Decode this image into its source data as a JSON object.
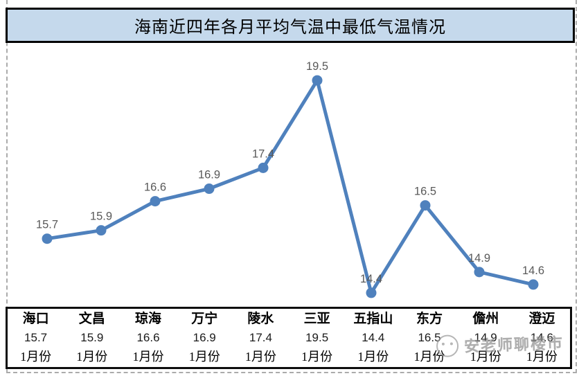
{
  "title": "海南近四年各月平均气温中最低气温情况",
  "watermark": {
    "text": "安老师聊楼市",
    "icon": "smiley-face-icon"
  },
  "colors": {
    "title_fill": "#c5d9ec",
    "title_border": "#000000",
    "line": "#4f81bd",
    "marker": "#4f81bd",
    "data_label": "#595959",
    "table_border": "#0d0d0d",
    "dashed_border": "#ababab",
    "watermark": "#8f8f8f"
  },
  "chart_data": {
    "type": "line",
    "title": "海南近四年各月平均气温中最低气温情况",
    "categories": [
      "海口",
      "文昌",
      "琼海",
      "万宁",
      "陵水",
      "三亚",
      "五指山",
      "东方",
      "儋州",
      "澄迈"
    ],
    "values": [
      15.7,
      15.9,
      16.6,
      16.9,
      17.4,
      19.5,
      14.4,
      16.5,
      14.9,
      14.6
    ],
    "data_labels": true,
    "xlabel": "",
    "ylabel": "",
    "ylim": [
      14,
      20
    ],
    "grid": false,
    "legend": "none",
    "line_color": "#4f81bd",
    "label_color": "#595959"
  },
  "table": {
    "cities": [
      "海口",
      "文昌",
      "琼海",
      "万宁",
      "陵水",
      "三亚",
      "五指山",
      "东方",
      "儋州",
      "澄迈"
    ],
    "values": [
      "15.7",
      "15.9",
      "16.6",
      "16.9",
      "17.4",
      "19.5",
      "14.4",
      "16.5",
      "14.9",
      "14.6"
    ],
    "months": [
      "1月份",
      "1月份",
      "1月份",
      "1月份",
      "1月份",
      "1月份",
      "1月份",
      "1月份",
      "1月份",
      "1月份"
    ]
  }
}
